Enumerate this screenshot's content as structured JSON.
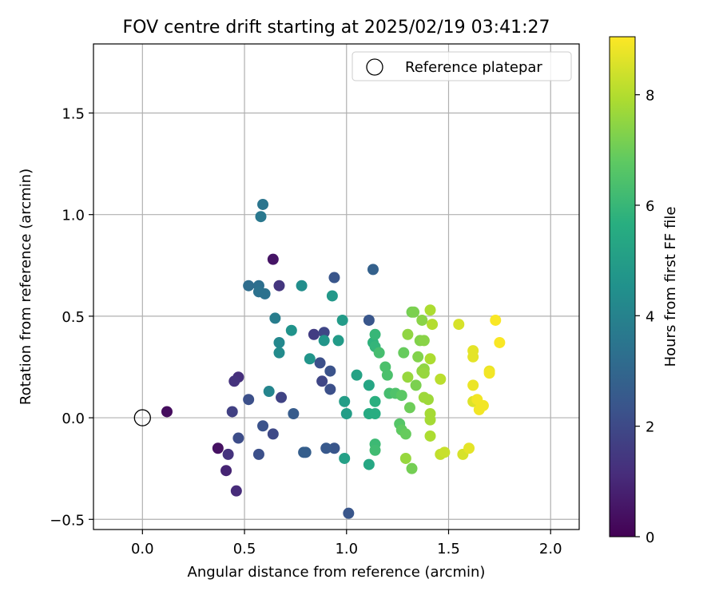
{
  "chart_data": {
    "type": "scatter",
    "title": "FOV centre drift starting at 2025/02/19 03:41:27",
    "xlabel": "Angular distance from reference (arcmin)",
    "ylabel": "Rotation from reference (arcmin)",
    "xlim": [
      -0.24,
      2.14
    ],
    "ylim": [
      -0.55,
      1.84
    ],
    "xticks": [
      "0.0",
      "0.5",
      "1.0",
      "1.5",
      "2.0"
    ],
    "yticks": [
      "−0.5",
      "0.0",
      "0.5",
      "1.0",
      "1.5"
    ],
    "grid": true,
    "legend": {
      "placement": "top-right",
      "entries": [
        "Reference platepar"
      ]
    },
    "reference_point": {
      "x": 0.0,
      "y": 0.0,
      "marker": "hollow-circle",
      "color": "#000000"
    },
    "colorbar": {
      "label": "Hours from first FF file",
      "range": [
        0,
        9.05
      ],
      "ticks": [
        "0",
        "2",
        "4",
        "6",
        "8"
      ],
      "colormap": "viridis"
    },
    "points": [
      {
        "x": 0.12,
        "y": 0.03,
        "h": 0.3
      },
      {
        "x": 0.37,
        "y": -0.15,
        "h": 0.4
      },
      {
        "x": 0.64,
        "y": 0.78,
        "h": 0.5
      },
      {
        "x": 0.41,
        "y": -0.26,
        "h": 0.9
      },
      {
        "x": 0.46,
        "y": -0.36,
        "h": 1.1
      },
      {
        "x": 0.42,
        "y": -0.18,
        "h": 1.3
      },
      {
        "x": 0.47,
        "y": 0.2,
        "h": 1.2
      },
      {
        "x": 0.45,
        "y": 0.18,
        "h": 1.3
      },
      {
        "x": 0.67,
        "y": 0.65,
        "h": 1.4
      },
      {
        "x": 0.84,
        "y": 0.41,
        "h": 1.6
      },
      {
        "x": 0.44,
        "y": 0.03,
        "h": 1.7
      },
      {
        "x": 0.68,
        "y": 0.1,
        "h": 1.8
      },
      {
        "x": 0.88,
        "y": 0.18,
        "h": 1.9
      },
      {
        "x": 0.89,
        "y": 0.42,
        "h": 1.9
      },
      {
        "x": 0.64,
        "y": -0.08,
        "h": 2.0
      },
      {
        "x": 0.47,
        "y": -0.1,
        "h": 2.1
      },
      {
        "x": 0.57,
        "y": -0.18,
        "h": 2.2
      },
      {
        "x": 0.52,
        "y": 0.09,
        "h": 2.2
      },
      {
        "x": 0.59,
        "y": -0.04,
        "h": 2.3
      },
      {
        "x": 0.87,
        "y": 0.27,
        "h": 2.2
      },
      {
        "x": 0.92,
        "y": 0.23,
        "h": 2.3
      },
      {
        "x": 0.92,
        "y": 0.14,
        "h": 2.2
      },
      {
        "x": 1.11,
        "y": 0.48,
        "h": 2.4
      },
      {
        "x": 0.94,
        "y": 0.69,
        "h": 2.4
      },
      {
        "x": 1.01,
        "y": -0.47,
        "h": 2.4
      },
      {
        "x": 0.9,
        "y": -0.15,
        "h": 2.5
      },
      {
        "x": 0.94,
        "y": -0.15,
        "h": 2.4
      },
      {
        "x": 0.74,
        "y": 0.02,
        "h": 2.6
      },
      {
        "x": 0.79,
        "y": -0.17,
        "h": 2.7
      },
      {
        "x": 0.8,
        "y": -0.17,
        "h": 2.7
      },
      {
        "x": 1.13,
        "y": 0.73,
        "h": 2.8
      },
      {
        "x": 0.52,
        "y": 0.65,
        "h": 3.2
      },
      {
        "x": 0.57,
        "y": 0.65,
        "h": 3.3
      },
      {
        "x": 0.57,
        "y": 0.62,
        "h": 3.4
      },
      {
        "x": 0.6,
        "y": 0.61,
        "h": 3.4
      },
      {
        "x": 0.59,
        "y": 1.05,
        "h": 3.5
      },
      {
        "x": 0.58,
        "y": 0.99,
        "h": 3.6
      },
      {
        "x": 0.65,
        "y": 0.49,
        "h": 3.8
      },
      {
        "x": 0.62,
        "y": 0.13,
        "h": 4.1
      },
      {
        "x": 0.67,
        "y": 0.37,
        "h": 4.2
      },
      {
        "x": 0.67,
        "y": 0.32,
        "h": 4.3
      },
      {
        "x": 0.78,
        "y": 0.65,
        "h": 4.4
      },
      {
        "x": 0.73,
        "y": 0.43,
        "h": 4.6
      },
      {
        "x": 0.82,
        "y": 0.29,
        "h": 4.7
      },
      {
        "x": 0.89,
        "y": 0.38,
        "h": 4.7
      },
      {
        "x": 0.93,
        "y": 0.6,
        "h": 4.8
      },
      {
        "x": 0.98,
        "y": 0.48,
        "h": 4.9
      },
      {
        "x": 0.96,
        "y": 0.38,
        "h": 4.9
      },
      {
        "x": 0.99,
        "y": 0.08,
        "h": 5.0
      },
      {
        "x": 1.0,
        "y": 0.02,
        "h": 5.0
      },
      {
        "x": 0.99,
        "y": -0.2,
        "h": 5.1
      },
      {
        "x": 1.05,
        "y": 0.21,
        "h": 5.2
      },
      {
        "x": 1.11,
        "y": 0.16,
        "h": 5.3
      },
      {
        "x": 1.11,
        "y": -0.23,
        "h": 5.4
      },
      {
        "x": 1.11,
        "y": 0.02,
        "h": 5.5
      },
      {
        "x": 1.14,
        "y": 0.02,
        "h": 5.6
      },
      {
        "x": 1.14,
        "y": 0.08,
        "h": 5.7
      },
      {
        "x": 1.13,
        "y": 0.37,
        "h": 5.8
      },
      {
        "x": 1.14,
        "y": 0.35,
        "h": 5.9
      },
      {
        "x": 1.14,
        "y": 0.41,
        "h": 6.0
      },
      {
        "x": 1.14,
        "y": -0.13,
        "h": 6.1
      },
      {
        "x": 1.14,
        "y": -0.16,
        "h": 6.2
      },
      {
        "x": 1.16,
        "y": 0.32,
        "h": 6.3
      },
      {
        "x": 1.19,
        "y": 0.25,
        "h": 6.4
      },
      {
        "x": 1.2,
        "y": 0.21,
        "h": 6.4
      },
      {
        "x": 1.21,
        "y": 0.12,
        "h": 6.3
      },
      {
        "x": 1.24,
        "y": 0.12,
        "h": 6.5
      },
      {
        "x": 1.26,
        "y": -0.03,
        "h": 6.6
      },
      {
        "x": 1.27,
        "y": 0.11,
        "h": 6.7
      },
      {
        "x": 1.27,
        "y": -0.06,
        "h": 6.8
      },
      {
        "x": 1.29,
        "y": -0.08,
        "h": 6.9
      },
      {
        "x": 1.28,
        "y": 0.32,
        "h": 6.9
      },
      {
        "x": 1.31,
        "y": 0.05,
        "h": 7.0
      },
      {
        "x": 1.32,
        "y": 0.52,
        "h": 7.1
      },
      {
        "x": 1.32,
        "y": -0.25,
        "h": 7.1
      },
      {
        "x": 1.33,
        "y": 0.52,
        "h": 7.2
      },
      {
        "x": 1.34,
        "y": 0.16,
        "h": 7.2
      },
      {
        "x": 1.35,
        "y": 0.3,
        "h": 7.3
      },
      {
        "x": 1.36,
        "y": 0.38,
        "h": 7.3
      },
      {
        "x": 1.37,
        "y": 0.48,
        "h": 7.4
      },
      {
        "x": 1.38,
        "y": 0.38,
        "h": 7.4
      },
      {
        "x": 1.38,
        "y": 0.24,
        "h": 7.5
      },
      {
        "x": 1.37,
        "y": 0.23,
        "h": 7.5
      },
      {
        "x": 1.38,
        "y": 0.22,
        "h": 7.6
      },
      {
        "x": 1.3,
        "y": 0.2,
        "h": 7.6
      },
      {
        "x": 1.3,
        "y": 0.41,
        "h": 7.5
      },
      {
        "x": 1.29,
        "y": -0.2,
        "h": 7.6
      },
      {
        "x": 1.38,
        "y": 0.1,
        "h": 7.7
      },
      {
        "x": 1.4,
        "y": 0.09,
        "h": 7.7
      },
      {
        "x": 1.41,
        "y": 0.02,
        "h": 7.8
      },
      {
        "x": 1.41,
        "y": -0.01,
        "h": 7.8
      },
      {
        "x": 1.41,
        "y": -0.09,
        "h": 7.9
      },
      {
        "x": 1.41,
        "y": 0.29,
        "h": 7.9
      },
      {
        "x": 1.41,
        "y": 0.53,
        "h": 7.9
      },
      {
        "x": 1.42,
        "y": 0.46,
        "h": 8.0
      },
      {
        "x": 1.46,
        "y": 0.19,
        "h": 8.1
      },
      {
        "x": 1.46,
        "y": -0.18,
        "h": 8.2
      },
      {
        "x": 1.48,
        "y": -0.17,
        "h": 8.3
      },
      {
        "x": 1.55,
        "y": 0.46,
        "h": 8.5
      },
      {
        "x": 1.57,
        "y": -0.18,
        "h": 8.5
      },
      {
        "x": 1.6,
        "y": -0.15,
        "h": 8.7
      },
      {
        "x": 1.62,
        "y": 0.33,
        "h": 8.7
      },
      {
        "x": 1.62,
        "y": 0.3,
        "h": 8.7
      },
      {
        "x": 1.62,
        "y": 0.16,
        "h": 8.8
      },
      {
        "x": 1.62,
        "y": 0.08,
        "h": 8.6
      },
      {
        "x": 1.64,
        "y": 0.09,
        "h": 8.9
      },
      {
        "x": 1.65,
        "y": 0.04,
        "h": 8.9
      },
      {
        "x": 1.67,
        "y": 0.06,
        "h": 8.9
      },
      {
        "x": 1.7,
        "y": 0.22,
        "h": 8.9
      },
      {
        "x": 1.7,
        "y": 0.23,
        "h": 8.8
      },
      {
        "x": 1.73,
        "y": 0.48,
        "h": 9.0
      },
      {
        "x": 1.75,
        "y": 0.37,
        "h": 9.0
      }
    ]
  }
}
